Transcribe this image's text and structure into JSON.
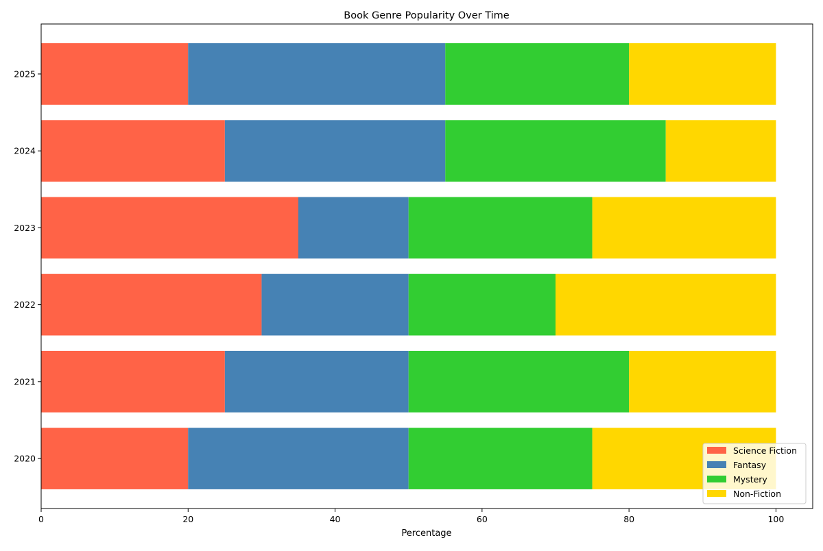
{
  "chart_data": {
    "type": "bar",
    "orientation": "horizontal",
    "stacked": true,
    "title": "Book Genre Popularity Over Time",
    "xlabel": "Percentage",
    "ylabel": "",
    "xlim": [
      0,
      105
    ],
    "xticks": [
      0,
      20,
      40,
      60,
      80,
      100
    ],
    "categories": [
      "2020",
      "2021",
      "2022",
      "2023",
      "2024",
      "2025"
    ],
    "series": [
      {
        "name": "Science Fiction",
        "color": "#FF6347",
        "values": [
          20,
          25,
          30,
          35,
          25,
          20
        ]
      },
      {
        "name": "Fantasy",
        "color": "#4682B4",
        "values": [
          30,
          25,
          20,
          15,
          30,
          35
        ]
      },
      {
        "name": "Mystery",
        "color": "#32CD32",
        "values": [
          25,
          30,
          20,
          25,
          30,
          25
        ]
      },
      {
        "name": "Non-Fiction",
        "color": "#FFD700",
        "values": [
          25,
          20,
          30,
          25,
          15,
          20
        ]
      }
    ],
    "grid": false,
    "legend_position": "lower-right"
  }
}
